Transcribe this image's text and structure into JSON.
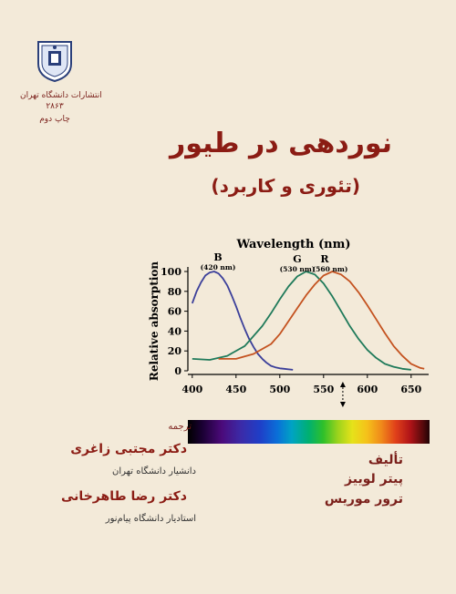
{
  "publisher": {
    "name": "انتشارات دانشگاه تهران",
    "number": "۲۸۶۳",
    "edition": "چاپ دوم",
    "seal_icon": "university-seal-icon"
  },
  "book": {
    "title": "نوردهی در طیور",
    "subtitle": "(تئوری و کاربرد)"
  },
  "chart_data": {
    "type": "line",
    "title": "Wavelength (nm)",
    "xlabel": "",
    "ylabel": "Relative absorption",
    "xlim": [
      395,
      670
    ],
    "ylim": [
      0,
      100
    ],
    "xticks": [
      400,
      450,
      500,
      550,
      600,
      650
    ],
    "yticks": [
      0,
      20,
      40,
      60,
      80,
      100
    ],
    "grid": false,
    "marker_at": 572,
    "series": [
      {
        "name": "B",
        "peak_label": "(420 nm)",
        "color": "#3b3f9a",
        "x": [
          400,
          405,
          410,
          415,
          420,
          425,
          430,
          435,
          440,
          445,
          450,
          455,
          460,
          465,
          470,
          475,
          480,
          485,
          490,
          495,
          500,
          505,
          510,
          515
        ],
        "y": [
          68,
          80,
          89,
          96,
          99,
          100,
          98,
          93,
          86,
          76,
          65,
          53,
          42,
          32,
          24,
          17,
          12,
          8,
          5,
          3.5,
          2.5,
          2,
          1.5,
          1
        ]
      },
      {
        "name": "G",
        "peak_label": "(530 nm)",
        "color": "#1f7a5a",
        "x": [
          400,
          420,
          440,
          460,
          480,
          490,
          500,
          510,
          520,
          530,
          540,
          550,
          560,
          570,
          580,
          590,
          600,
          610,
          620,
          630,
          640,
          650
        ],
        "y": [
          12,
          11,
          15,
          25,
          45,
          58,
          72,
          85,
          95,
          100,
          97,
          88,
          75,
          60,
          45,
          32,
          21,
          13,
          7,
          4,
          2,
          1
        ]
      },
      {
        "name": "R",
        "peak_label": "(560 nm)",
        "color": "#c4521f",
        "x": [
          430,
          450,
          470,
          490,
          500,
          510,
          520,
          530,
          540,
          550,
          560,
          570,
          580,
          590,
          600,
          610,
          620,
          630,
          640,
          650,
          660,
          665
        ],
        "y": [
          12,
          12,
          17,
          27,
          37,
          50,
          63,
          76,
          87,
          96,
          100,
          97,
          90,
          79,
          66,
          52,
          38,
          25,
          15,
          7,
          3,
          2
        ]
      }
    ]
  },
  "translators": {
    "role": "ترجمه",
    "t1_name": "دکتر مجتبی زاغری",
    "t1_affiliation": "دانشیار دانشگاه تهران",
    "t2_name": "دکتر رضا طاهرخانی",
    "t2_affiliation": "استادیار دانشگاه پیام‌نور"
  },
  "authors": {
    "role": "تألیف",
    "a1": "پیتر لوییز",
    "a2": "ترور موریس"
  },
  "spectrum_bar": "visible-spectrum"
}
